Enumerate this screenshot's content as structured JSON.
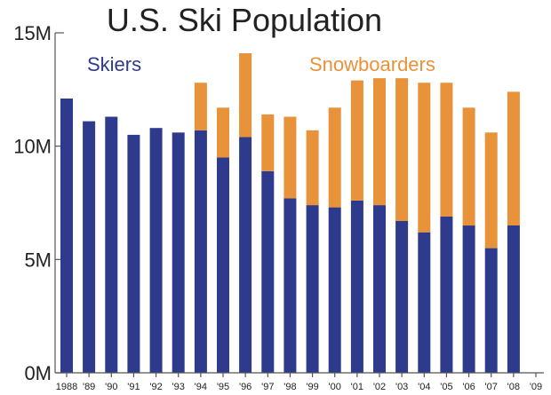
{
  "chart_data": {
    "type": "bar",
    "stacked": true,
    "title": "U.S. Ski Population",
    "xlabel": "",
    "ylabel": "",
    "ylim": [
      0,
      15
    ],
    "y_ticks": [
      "0M",
      "5M",
      "10M",
      "15M"
    ],
    "y_tick_values": [
      0,
      5,
      10,
      15
    ],
    "categories": [
      "1988",
      "'89",
      "'90",
      "'91",
      "'92",
      "'93",
      "'94",
      "'95",
      "'96",
      "'97",
      "'98",
      "'99",
      "'00",
      "'01",
      "'02",
      "'03",
      "'04",
      "'05",
      "'06",
      "'07",
      "'08",
      "'09"
    ],
    "series": [
      {
        "name": "Skiers",
        "color": "#2e3a8c",
        "values": [
          12.1,
          11.1,
          11.3,
          10.5,
          10.8,
          10.6,
          10.7,
          9.5,
          10.4,
          8.9,
          7.7,
          7.4,
          7.3,
          7.6,
          7.4,
          6.7,
          6.2,
          6.9,
          6.5,
          5.5,
          6.5,
          0
        ]
      },
      {
        "name": "Snowboarders",
        "color": "#e8923a",
        "values": [
          0,
          0,
          0,
          0,
          0,
          0,
          2.1,
          2.2,
          3.7,
          2.5,
          3.6,
          3.3,
          4.4,
          5.3,
          5.6,
          6.3,
          6.6,
          5.9,
          5.2,
          5.1,
          5.9,
          0
        ]
      }
    ],
    "grid": false,
    "legend": "inside-top"
  }
}
